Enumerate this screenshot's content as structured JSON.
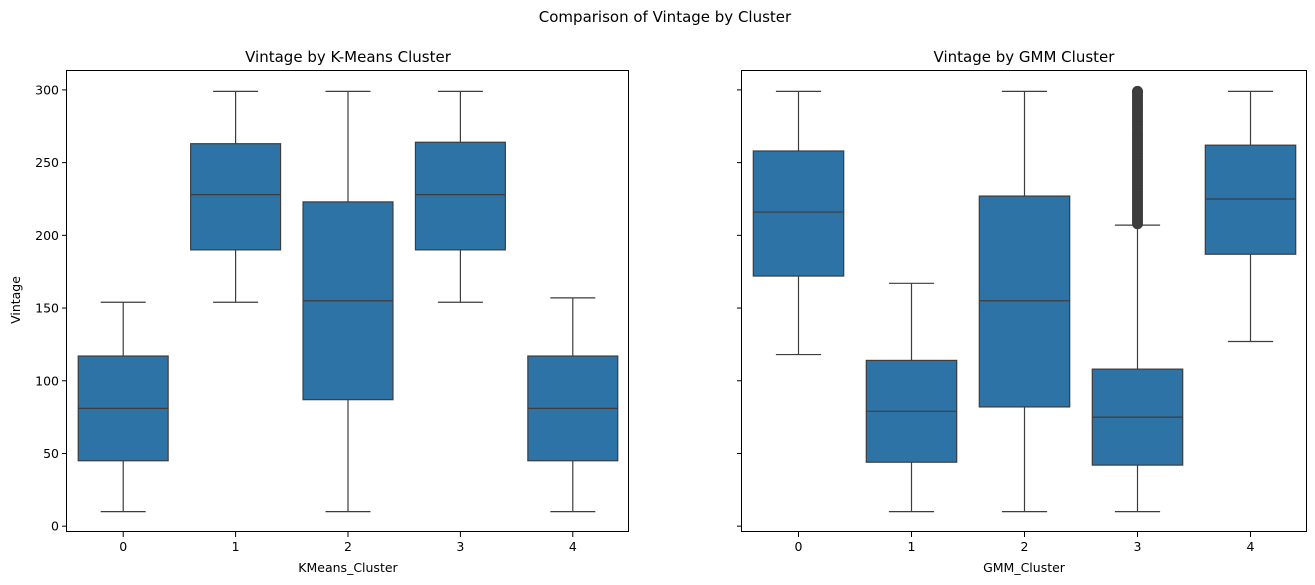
{
  "figure": {
    "suptitle": "Comparison of Vintage by Cluster"
  },
  "style": {
    "box_fill": "#2e73a6",
    "line_color": "#3d3d3d",
    "outlier_color": "#3d3d3d"
  },
  "chart_data": [
    {
      "type": "box",
      "title": "Vintage by K-Means Cluster",
      "xlabel": "KMeans_Cluster",
      "ylabel": "Vintage",
      "ylim": [
        -4,
        313
      ],
      "yticks": [
        0,
        50,
        100,
        150,
        200,
        250,
        300
      ],
      "categories": [
        "0",
        "1",
        "2",
        "3",
        "4"
      ],
      "boxes": [
        {
          "whisker_low": 10,
          "q1": 45,
          "median": 81,
          "q3": 117,
          "whisker_high": 154,
          "outliers": []
        },
        {
          "whisker_low": 154,
          "q1": 190,
          "median": 228,
          "q3": 263,
          "whisker_high": 299,
          "outliers": []
        },
        {
          "whisker_low": 10,
          "q1": 87,
          "median": 155,
          "q3": 223,
          "whisker_high": 299,
          "outliers": []
        },
        {
          "whisker_low": 154,
          "q1": 190,
          "median": 228,
          "q3": 264,
          "whisker_high": 299,
          "outliers": []
        },
        {
          "whisker_low": 10,
          "q1": 45,
          "median": 81,
          "q3": 117,
          "whisker_high": 157,
          "outliers": []
        }
      ],
      "grid": false
    },
    {
      "type": "box",
      "title": "Vintage by GMM Cluster",
      "xlabel": "GMM_Cluster",
      "ylabel": "",
      "ylim": [
        -4,
        313
      ],
      "yticks": [
        0,
        50,
        100,
        150,
        200,
        250,
        300
      ],
      "sharey": true,
      "categories": [
        "0",
        "1",
        "2",
        "3",
        "4"
      ],
      "boxes": [
        {
          "whisker_low": 118,
          "q1": 172,
          "median": 216,
          "q3": 258,
          "whisker_high": 299,
          "outliers": []
        },
        {
          "whisker_low": 10,
          "q1": 44,
          "median": 79,
          "q3": 114,
          "whisker_high": 167,
          "outliers": []
        },
        {
          "whisker_low": 10,
          "q1": 82,
          "median": 155,
          "q3": 227,
          "whisker_high": 299,
          "outliers": []
        },
        {
          "whisker_low": 10,
          "q1": 42,
          "median": 75,
          "q3": 108,
          "whisker_high": 207,
          "outliers": [
            208,
            210,
            212,
            214,
            216,
            218,
            220,
            222,
            224,
            226,
            228,
            230,
            232,
            234,
            236,
            238,
            240,
            242,
            244,
            246,
            248,
            250,
            252,
            254,
            256,
            258,
            260,
            262,
            264,
            266,
            268,
            270,
            272,
            274,
            276,
            278,
            280,
            282,
            284,
            286,
            288,
            290,
            292,
            294,
            296,
            298,
            299
          ]
        },
        {
          "whisker_low": 127,
          "q1": 187,
          "median": 225,
          "q3": 262,
          "whisker_high": 299,
          "outliers": []
        }
      ],
      "grid": false
    }
  ]
}
